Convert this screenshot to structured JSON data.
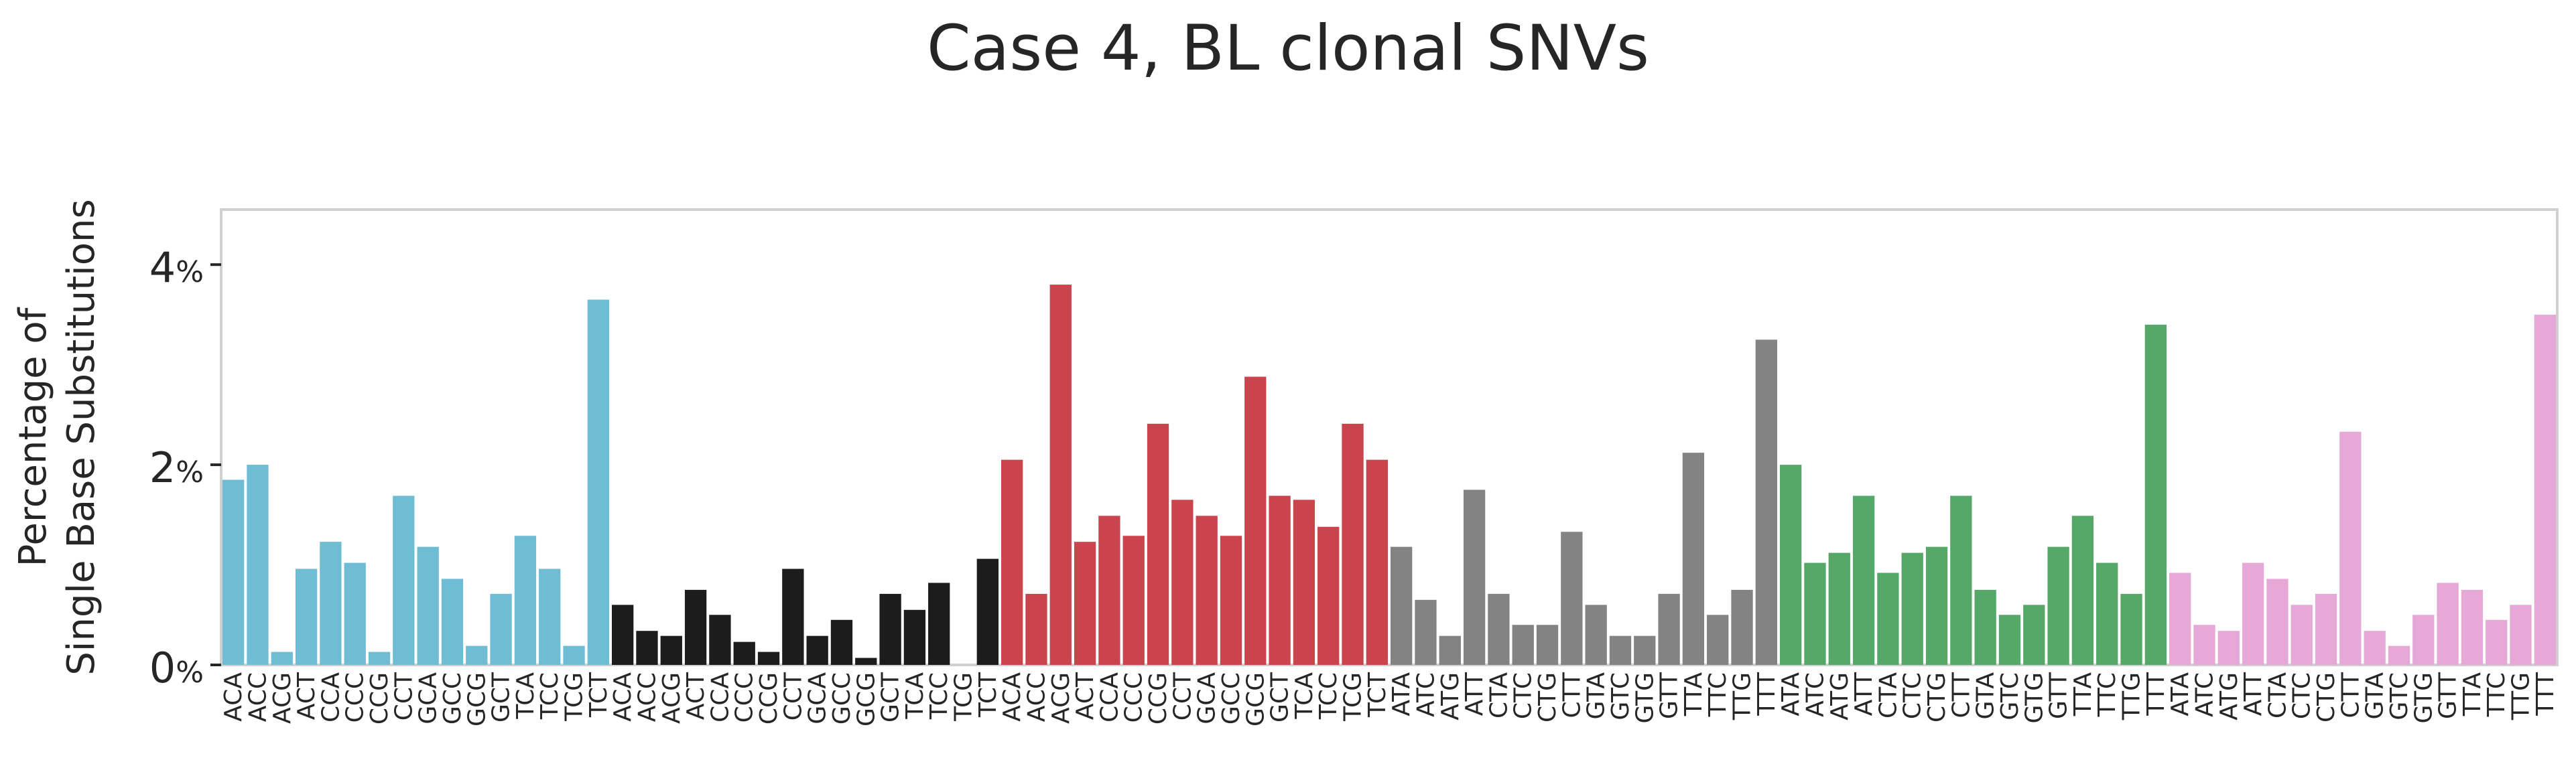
{
  "chart_data": {
    "type": "bar",
    "title": "Case 4, BL clonal SNVs",
    "ylabel_line1": "Percentage of",
    "ylabel_line2": "Single Base Substitutions",
    "ylim": [
      0,
      4.55
    ],
    "yticks": [
      0,
      2,
      4
    ],
    "ytick_unit": "%",
    "grid": false,
    "categories": [
      "ACA",
      "ACC",
      "ACG",
      "ACT",
      "CCA",
      "CCC",
      "CCG",
      "CCT",
      "GCA",
      "GCC",
      "GCG",
      "GCT",
      "TCA",
      "TCC",
      "TCG",
      "TCT",
      "ACA",
      "ACC",
      "ACG",
      "ACT",
      "CCA",
      "CCC",
      "CCG",
      "CCT",
      "GCA",
      "GCC",
      "GCG",
      "GCT",
      "TCA",
      "TCC",
      "TCG",
      "TCT",
      "ACA",
      "ACC",
      "ACG",
      "ACT",
      "CCA",
      "CCC",
      "CCG",
      "CCT",
      "GCA",
      "GCC",
      "GCG",
      "GCT",
      "TCA",
      "TCC",
      "TCG",
      "TCT",
      "ATA",
      "ATC",
      "ATG",
      "ATT",
      "CTA",
      "CTC",
      "CTG",
      "CTT",
      "GTA",
      "GTC",
      "GTG",
      "GTT",
      "TTA",
      "TTC",
      "TTG",
      "TTT",
      "ATA",
      "ATC",
      "ATG",
      "ATT",
      "CTA",
      "CTC",
      "CTG",
      "CTT",
      "GTA",
      "GTC",
      "GTG",
      "GTT",
      "TTA",
      "TTC",
      "TTG",
      "TTT",
      "ATA",
      "ATC",
      "ATG",
      "ATT",
      "CTA",
      "CTC",
      "CTG",
      "CTT",
      "GTA",
      "GTC",
      "GTG",
      "GTT",
      "TTA",
      "TTC",
      "TTG",
      "TTT"
    ],
    "values": [
      1.85,
      2.0,
      0.13,
      0.96,
      1.23,
      1.02,
      0.13,
      1.69,
      1.18,
      0.86,
      0.19,
      0.71,
      1.29,
      0.96,
      0.19,
      3.65,
      0.6,
      0.34,
      0.29,
      0.75,
      0.5,
      0.23,
      0.13,
      0.96,
      0.29,
      0.45,
      0.07,
      0.71,
      0.55,
      0.82,
      0.0,
      1.06,
      2.05,
      0.71,
      3.8,
      1.23,
      1.49,
      1.29,
      2.41,
      1.65,
      1.49,
      1.29,
      2.88,
      1.69,
      1.65,
      1.38,
      2.41,
      2.05,
      1.18,
      0.65,
      0.29,
      1.75,
      0.71,
      0.4,
      0.4,
      1.33,
      0.6,
      0.29,
      0.29,
      0.71,
      2.12,
      0.5,
      0.75,
      3.25,
      2.0,
      1.02,
      1.12,
      1.69,
      0.92,
      1.12,
      1.18,
      1.69,
      0.75,
      0.5,
      0.6,
      1.18,
      1.49,
      1.02,
      0.71,
      3.4,
      0.92,
      0.4,
      0.34,
      1.02,
      0.86,
      0.6,
      0.71,
      2.33,
      0.34,
      0.19,
      0.5,
      0.82,
      0.75,
      0.45,
      0.6,
      3.5
    ],
    "group_colors": [
      "#6fbcd5",
      "#1c1c1c",
      "#c9444d",
      "#838383",
      "#55a868",
      "#e6a8d7"
    ]
  }
}
